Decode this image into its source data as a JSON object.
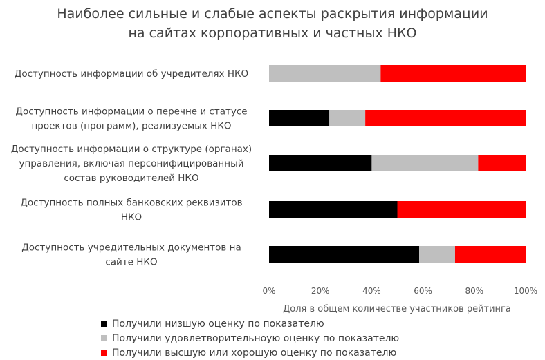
{
  "chart_data": {
    "type": "bar",
    "orientation": "horizontal",
    "stacked": "percent",
    "title_lines": [
      "Наиболее сильные и слабые аспекты раскрытия информации",
      "на сайтах корпоративных и частных НКО"
    ],
    "xlabel": "Доля в общем количестве участников рейтинга",
    "xlim": [
      0,
      100
    ],
    "xticks": [
      "0%",
      "20%",
      "40%",
      "60%",
      "80%",
      "100%"
    ],
    "grid": false,
    "legend_position": "bottom",
    "categories": [
      {
        "lines": [
          "Доступность информации об учредителях НКО"
        ]
      },
      {
        "lines": [
          "Доступность информации о перечне и статусе",
          "проектов (программ), реализуемых НКО"
        ]
      },
      {
        "lines": [
          "Доступность информации о структуре (органах)",
          "управления, включая персонифицированный",
          "состав руководителей НКО"
        ]
      },
      {
        "lines": [
          "Доступность полных банковских реквизитов",
          "НКО"
        ]
      },
      {
        "lines": [
          "Доступность учредительных документов на",
          "сайте НКО"
        ]
      }
    ],
    "series": [
      {
        "name": "Получили низшую оценку по показателю",
        "color": "#000000",
        "values": [
          0,
          23.5,
          40,
          50,
          58.5
        ]
      },
      {
        "name": "Получили удовлетворительноую оценку по показателю",
        "color": "#bfbfbf",
        "values": [
          43.5,
          14,
          41.5,
          0,
          14
        ]
      },
      {
        "name": "Получили высшую или хорошую оценку по показателю",
        "color": "#ff0000",
        "values": [
          56.5,
          62.5,
          18.5,
          50,
          27.5
        ]
      }
    ]
  }
}
